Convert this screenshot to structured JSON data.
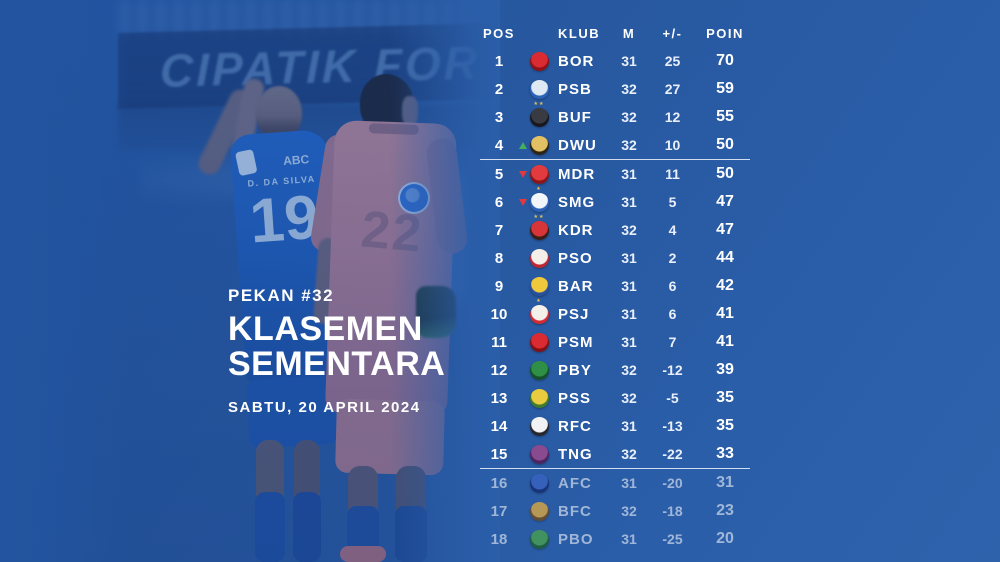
{
  "photo": {
    "banner_text": "CIPATIK FOR",
    "left_player": {
      "jersey_name": "D. DA SILVA",
      "jersey_number": "19",
      "sponsor": "ABC"
    },
    "right_player": {
      "jersey_number": "22"
    }
  },
  "title_block": {
    "week": "PEKAN #32",
    "title_line1": "KLASEMEN",
    "title_line2": "SEMENTARA",
    "date": "SABTU, 20 APRIL 2024"
  },
  "colors": {
    "background": "#2a5ba6",
    "arrow_up": "#43b05c",
    "arrow_down": "#e0393f",
    "separator": "#eef4fc",
    "dimmed_text": "rgba(255,255,255,0.55)"
  },
  "chart_data": {
    "type": "table",
    "title": "KLASEMEN SEMENTARA",
    "week": "PEKAN #32",
    "date": "SABTU, 20 APRIL 2024",
    "columns": [
      "POS",
      "KLUB",
      "M",
      "+/-",
      "POIN"
    ],
    "rows": [
      {
        "pos": 1,
        "club": "BOR",
        "m": 31,
        "diff": "25",
        "poin": 70,
        "arrow": "none",
        "dimmed": false,
        "separator_below": false,
        "stars": 0,
        "logo_colors": [
          "#d92b31",
          "#8f1216"
        ]
      },
      {
        "pos": 2,
        "club": "PSB",
        "m": 32,
        "diff": "27",
        "poin": 59,
        "arrow": "none",
        "dimmed": false,
        "separator_below": false,
        "stars": 0,
        "logo_colors": [
          "#dfe9f4",
          "#2b62b8"
        ]
      },
      {
        "pos": 3,
        "club": "BUF",
        "m": 32,
        "diff": "12",
        "poin": 55,
        "arrow": "none",
        "dimmed": false,
        "separator_below": false,
        "stars": 2,
        "logo_colors": [
          "#3a3a42",
          "#17171c"
        ]
      },
      {
        "pos": 4,
        "club": "DWU",
        "m": 32,
        "diff": "10",
        "poin": 50,
        "arrow": "up",
        "dimmed": false,
        "separator_below": true,
        "stars": 0,
        "logo_colors": [
          "#e3c064",
          "#2b2417"
        ]
      },
      {
        "pos": 5,
        "club": "MDR",
        "m": 31,
        "diff": "11",
        "poin": 50,
        "arrow": "down",
        "dimmed": false,
        "separator_below": false,
        "stars": 0,
        "logo_colors": [
          "#e23b3f",
          "#8d1519"
        ]
      },
      {
        "pos": 6,
        "club": "SMG",
        "m": 31,
        "diff": "5",
        "poin": 47,
        "arrow": "down",
        "dimmed": false,
        "separator_below": false,
        "stars": 1,
        "logo_colors": [
          "#f2f6fa",
          "#2b62b8"
        ]
      },
      {
        "pos": 7,
        "club": "KDR",
        "m": 32,
        "diff": "4",
        "poin": 47,
        "arrow": "none",
        "dimmed": false,
        "separator_below": false,
        "stars": 2,
        "logo_colors": [
          "#d8353a",
          "#3a1d14"
        ]
      },
      {
        "pos": 8,
        "club": "PSO",
        "m": 31,
        "diff": "2",
        "poin": 44,
        "arrow": "none",
        "dimmed": false,
        "separator_below": false,
        "stars": 0,
        "logo_colors": [
          "#f4efe8",
          "#bf2730"
        ]
      },
      {
        "pos": 9,
        "club": "BAR",
        "m": 31,
        "diff": "6",
        "poin": 42,
        "arrow": "none",
        "dimmed": false,
        "separator_below": false,
        "stars": 0,
        "logo_colors": [
          "#f0c83c",
          "#27509e"
        ]
      },
      {
        "pos": 10,
        "club": "PSJ",
        "m": 31,
        "diff": "6",
        "poin": 41,
        "arrow": "none",
        "dimmed": false,
        "separator_below": false,
        "stars": 1,
        "logo_colors": [
          "#f4f1ea",
          "#d22c32"
        ]
      },
      {
        "pos": 11,
        "club": "PSM",
        "m": 31,
        "diff": "7",
        "poin": 41,
        "arrow": "none",
        "dimmed": false,
        "separator_below": false,
        "stars": 0,
        "logo_colors": [
          "#d92b31",
          "#821014"
        ]
      },
      {
        "pos": 12,
        "club": "PBY",
        "m": 32,
        "diff": "-12",
        "poin": 39,
        "arrow": "none",
        "dimmed": false,
        "separator_below": false,
        "stars": 0,
        "logo_colors": [
          "#2f8f46",
          "#14512a"
        ]
      },
      {
        "pos": 13,
        "club": "PSS",
        "m": 32,
        "diff": "-5",
        "poin": 35,
        "arrow": "none",
        "dimmed": false,
        "separator_below": false,
        "stars": 0,
        "logo_colors": [
          "#e8cb3e",
          "#3f7a2e"
        ]
      },
      {
        "pos": 14,
        "club": "RFC",
        "m": 31,
        "diff": "-13",
        "poin": 35,
        "arrow": "none",
        "dimmed": false,
        "separator_below": false,
        "stars": 0,
        "logo_colors": [
          "#f2f2f4",
          "#26262c"
        ]
      },
      {
        "pos": 15,
        "club": "TNG",
        "m": 32,
        "diff": "-22",
        "poin": 33,
        "arrow": "none",
        "dimmed": false,
        "separator_below": true,
        "stars": 0,
        "logo_colors": [
          "#8a4a8f",
          "#4a2560"
        ]
      },
      {
        "pos": 16,
        "club": "AFC",
        "m": 31,
        "diff": "-20",
        "poin": 31,
        "arrow": "none",
        "dimmed": true,
        "separator_below": false,
        "stars": 0,
        "logo_colors": [
          "#3a63c0",
          "#152a6e"
        ]
      },
      {
        "pos": 17,
        "club": "BFC",
        "m": 32,
        "diff": "-18",
        "poin": 23,
        "arrow": "none",
        "dimmed": true,
        "separator_below": false,
        "stars": 0,
        "logo_colors": [
          "#d8a743",
          "#6e4a1c"
        ]
      },
      {
        "pos": 18,
        "club": "PBO",
        "m": 31,
        "diff": "-25",
        "poin": 20,
        "arrow": "none",
        "dimmed": true,
        "separator_below": false,
        "stars": 0,
        "logo_colors": [
          "#49a04e",
          "#1c5c2c"
        ]
      }
    ]
  }
}
